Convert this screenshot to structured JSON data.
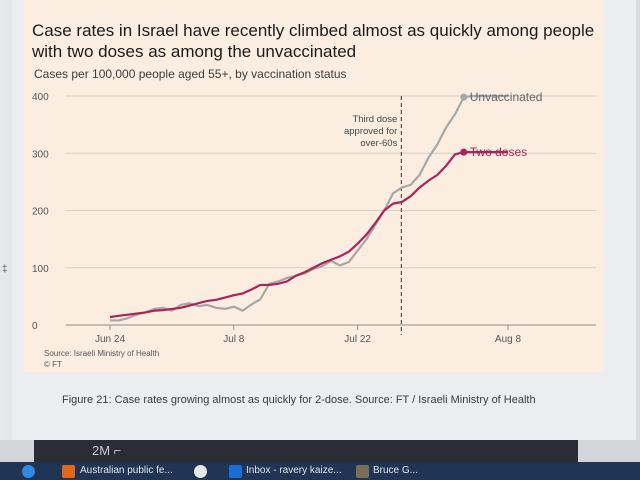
{
  "chart_data": {
    "type": "line",
    "title": "Case rates in Israel have recently climbed almost as quickly among people with two doses as among the unvaccinated",
    "subtitle": "Cases per 100,000 people aged 55+, by vaccination status",
    "x_tick_labels": [
      "Jun 24",
      "Jul 8",
      "Jul 22",
      "Aug 8"
    ],
    "y_tick_labels": [
      "0",
      "100",
      "200",
      "300",
      "400"
    ],
    "ylim": [
      0,
      420
    ],
    "grid": "horizontal",
    "legend": "labels at line ends",
    "annotation": {
      "lines": [
        "Third dose",
        "approved for",
        "over-60s"
      ],
      "x": 30
    },
    "source": "Source: Israeli Ministry of Health",
    "credit": "© FT",
    "series": [
      {
        "name": "Unvaccinated",
        "color": "#a7a7a7",
        "x": [
          0,
          1,
          2,
          3,
          4,
          5,
          6,
          7,
          8,
          9,
          10,
          11,
          12,
          13,
          14,
          15,
          16,
          17,
          18,
          19,
          20,
          21,
          22,
          23,
          24,
          25,
          26,
          27,
          28,
          29,
          30,
          31,
          32,
          33,
          34,
          35,
          36,
          37,
          38,
          39,
          40,
          41,
          42,
          43,
          44,
          45
        ],
        "values": [
          8,
          8,
          12,
          18,
          22,
          28,
          30,
          25,
          35,
          38,
          33,
          35,
          30,
          28,
          32,
          25,
          36,
          45,
          72,
          76,
          82,
          86,
          90,
          98,
          103,
          112,
          104,
          110,
          130,
          150,
          175,
          200,
          230,
          240,
          245,
          262,
          292,
          315,
          345,
          368,
          398,
          400,
          400,
          400,
          400,
          400
        ]
      },
      {
        "name": "Two doses",
        "color": "#a8245c",
        "x": [
          0,
          1,
          2,
          3,
          4,
          5,
          6,
          7,
          8,
          9,
          10,
          11,
          12,
          13,
          14,
          15,
          16,
          17,
          18,
          19,
          20,
          21,
          22,
          23,
          24,
          25,
          26,
          27,
          28,
          29,
          30,
          31,
          32,
          33,
          34,
          35,
          36,
          37,
          38,
          39,
          40,
          41,
          42,
          43,
          44,
          45
        ],
        "values": [
          14,
          16,
          18,
          20,
          22,
          25,
          26,
          28,
          30,
          34,
          38,
          42,
          44,
          48,
          52,
          55,
          62,
          70,
          70,
          72,
          76,
          86,
          92,
          100,
          108,
          114,
          120,
          128,
          142,
          158,
          178,
          200,
          212,
          215,
          225,
          240,
          252,
          262,
          278,
          298,
          302,
          302,
          302,
          302,
          302,
          302
        ]
      }
    ]
  },
  "caption": "Figure 21: Case rates growing almost as quickly for 2-dose. Source: FT / Israeli Ministry of Health",
  "video_panel": {
    "label": "2M ⌐"
  },
  "taskbar": {
    "items": [
      {
        "label": "Australian public fe...",
        "icon_color": "#e0681b"
      },
      {
        "label": "Inbox - ravery kaize...",
        "icon_color": "#1c6fd1"
      },
      {
        "label": "Bruce G...",
        "icon_color": "#7a6d5a"
      }
    ]
  }
}
